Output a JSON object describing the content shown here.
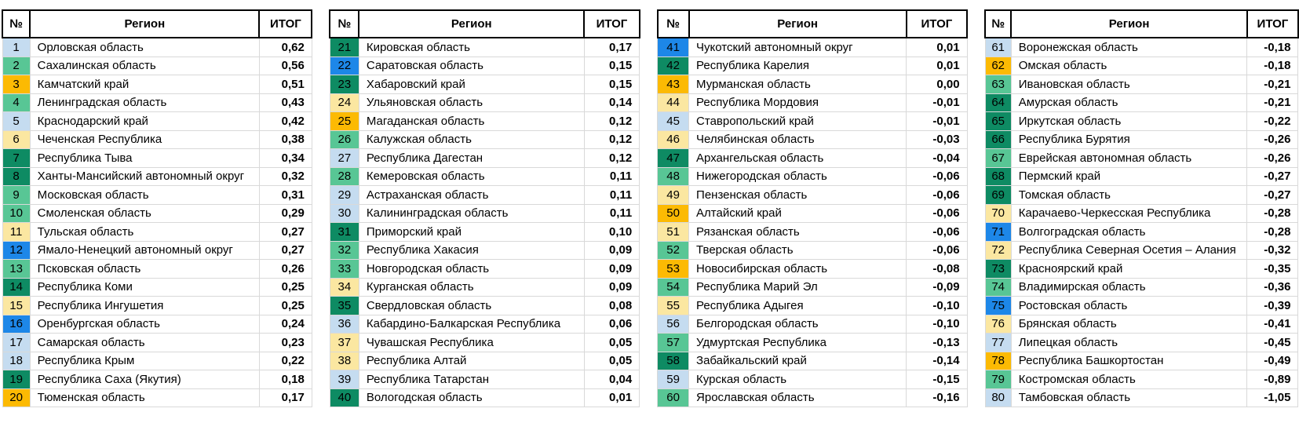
{
  "colors": {
    "lightblue": "#c5dcf0",
    "green": "#58c695",
    "teal": "#0e8b63",
    "gold": "#fcba03",
    "paleyellow": "#fbe7a1",
    "blue": "#1d87e8"
  },
  "chart_data": {
    "type": "table",
    "columns": {
      "num": "№",
      "region": "Регион",
      "total": "ИТОГ"
    },
    "tables": [
      {
        "rows": [
          {
            "n": "1",
            "region": "Орловская область",
            "value": "0,62",
            "color": "lightblue"
          },
          {
            "n": "2",
            "region": "Сахалинская область",
            "value": "0,56",
            "color": "green"
          },
          {
            "n": "3",
            "region": "Камчатский край",
            "value": "0,51",
            "color": "gold"
          },
          {
            "n": "4",
            "region": "Ленинградская область",
            "value": "0,43",
            "color": "green"
          },
          {
            "n": "5",
            "region": "Краснодарский край",
            "value": "0,42",
            "color": "lightblue"
          },
          {
            "n": "6",
            "region": "Чеченская Республика",
            "value": "0,38",
            "color": "paleyellow"
          },
          {
            "n": "7",
            "region": "Республика Тыва",
            "value": "0,34",
            "color": "teal"
          },
          {
            "n": "8",
            "region": "Ханты-Мансийский автономный округ",
            "value": "0,32",
            "color": "teal"
          },
          {
            "n": "9",
            "region": "Московская область",
            "value": "0,31",
            "color": "green"
          },
          {
            "n": "10",
            "region": "Смоленская область",
            "value": "0,29",
            "color": "green"
          },
          {
            "n": "11",
            "region": "Тульская область",
            "value": "0,27",
            "color": "paleyellow"
          },
          {
            "n": "12",
            "region": "Ямало-Ненецкий автономный округ",
            "value": "0,27",
            "color": "blue"
          },
          {
            "n": "13",
            "region": "Псковская область",
            "value": "0,26",
            "color": "green"
          },
          {
            "n": "14",
            "region": "Республика Коми",
            "value": "0,25",
            "color": "teal"
          },
          {
            "n": "15",
            "region": "Республика Ингушетия",
            "value": "0,25",
            "color": "paleyellow"
          },
          {
            "n": "16",
            "region": "Оренбургская область",
            "value": "0,24",
            "color": "blue"
          },
          {
            "n": "17",
            "region": "Самарская область",
            "value": "0,23",
            "color": "lightblue"
          },
          {
            "n": "18",
            "region": "Республика Крым",
            "value": "0,22",
            "color": "lightblue"
          },
          {
            "n": "19",
            "region": "Республика Саха (Якутия)",
            "value": "0,18",
            "color": "teal"
          },
          {
            "n": "20",
            "region": "Тюменская область",
            "value": "0,17",
            "color": "gold"
          }
        ]
      },
      {
        "rows": [
          {
            "n": "21",
            "region": "Кировская область",
            "value": "0,17",
            "color": "teal"
          },
          {
            "n": "22",
            "region": "Саратовская область",
            "value": "0,15",
            "color": "blue"
          },
          {
            "n": "23",
            "region": "Хабаровский край",
            "value": "0,15",
            "color": "teal"
          },
          {
            "n": "24",
            "region": "Ульяновская область",
            "value": "0,14",
            "color": "paleyellow"
          },
          {
            "n": "25",
            "region": "Магаданская область",
            "value": "0,12",
            "color": "gold"
          },
          {
            "n": "26",
            "region": "Калужская область",
            "value": "0,12",
            "color": "green"
          },
          {
            "n": "27",
            "region": "Республика Дагестан",
            "value": "0,12",
            "color": "lightblue"
          },
          {
            "n": "28",
            "region": "Кемеровская область",
            "value": "0,11",
            "color": "green"
          },
          {
            "n": "29",
            "region": "Астраханская область",
            "value": "0,11",
            "color": "lightblue"
          },
          {
            "n": "30",
            "region": "Калининградская область",
            "value": "0,11",
            "color": "lightblue"
          },
          {
            "n": "31",
            "region": "Приморский край",
            "value": "0,10",
            "color": "teal"
          },
          {
            "n": "32",
            "region": "Республика Хакасия",
            "value": "0,09",
            "color": "green"
          },
          {
            "n": "33",
            "region": "Новгородская область",
            "value": "0,09",
            "color": "green"
          },
          {
            "n": "34",
            "region": "Курганская область",
            "value": "0,09",
            "color": "paleyellow"
          },
          {
            "n": "35",
            "region": "Свердловская область",
            "value": "0,08",
            "color": "teal"
          },
          {
            "n": "36",
            "region": "Кабардино-Балкарская Республика",
            "value": "0,06",
            "color": "lightblue"
          },
          {
            "n": "37",
            "region": "Чувашская Республика",
            "value": "0,05",
            "color": "paleyellow"
          },
          {
            "n": "38",
            "region": "Республика Алтай",
            "value": "0,05",
            "color": "paleyellow"
          },
          {
            "n": "39",
            "region": "Республика Татарстан",
            "value": "0,04",
            "color": "lightblue"
          },
          {
            "n": "40",
            "region": "Вологодская область",
            "value": "0,01",
            "color": "teal"
          }
        ]
      },
      {
        "rows": [
          {
            "n": "41",
            "region": "Чукотский автономный округ",
            "value": "0,01",
            "color": "blue"
          },
          {
            "n": "42",
            "region": "Республика Карелия",
            "value": "0,01",
            "color": "teal"
          },
          {
            "n": "43",
            "region": "Мурманская область",
            "value": "0,00",
            "color": "gold"
          },
          {
            "n": "44",
            "region": "Республика Мордовия",
            "value": "-0,01",
            "color": "paleyellow"
          },
          {
            "n": "45",
            "region": "Ставропольский край",
            "value": "-0,01",
            "color": "lightblue"
          },
          {
            "n": "46",
            "region": "Челябинская область",
            "value": "-0,03",
            "color": "paleyellow"
          },
          {
            "n": "47",
            "region": "Архангельская область",
            "value": "-0,04",
            "color": "teal"
          },
          {
            "n": "48",
            "region": "Нижегородская область",
            "value": "-0,06",
            "color": "green"
          },
          {
            "n": "49",
            "region": "Пензенская область",
            "value": "-0,06",
            "color": "paleyellow"
          },
          {
            "n": "50",
            "region": "Алтайский край",
            "value": "-0,06",
            "color": "gold"
          },
          {
            "n": "51",
            "region": "Рязанская область",
            "value": "-0,06",
            "color": "paleyellow"
          },
          {
            "n": "52",
            "region": "Тверская область",
            "value": "-0,06",
            "color": "green"
          },
          {
            "n": "53",
            "region": "Новосибирская область",
            "value": "-0,08",
            "color": "gold"
          },
          {
            "n": "54",
            "region": "Республика Марий Эл",
            "value": "-0,09",
            "color": "green"
          },
          {
            "n": "55",
            "region": "Республика Адыгея",
            "value": "-0,10",
            "color": "paleyellow"
          },
          {
            "n": "56",
            "region": "Белгородская область",
            "value": "-0,10",
            "color": "lightblue"
          },
          {
            "n": "57",
            "region": "Удмуртская Республика",
            "value": "-0,13",
            "color": "green"
          },
          {
            "n": "58",
            "region": "Забайкальский край",
            "value": "-0,14",
            "color": "teal"
          },
          {
            "n": "59",
            "region": "Курская область",
            "value": "-0,15",
            "color": "lightblue"
          },
          {
            "n": "60",
            "region": "Ярославская область",
            "value": "-0,16",
            "color": "green"
          }
        ]
      },
      {
        "rows": [
          {
            "n": "61",
            "region": "Воронежская область",
            "value": "-0,18",
            "color": "lightblue"
          },
          {
            "n": "62",
            "region": "Омская область",
            "value": "-0,18",
            "color": "gold"
          },
          {
            "n": "63",
            "region": "Ивановская область",
            "value": "-0,21",
            "color": "green"
          },
          {
            "n": "64",
            "region": "Амурская область",
            "value": "-0,21",
            "color": "teal"
          },
          {
            "n": "65",
            "region": "Иркутская область",
            "value": "-0,22",
            "color": "teal"
          },
          {
            "n": "66",
            "region": "Республика Бурятия",
            "value": "-0,26",
            "color": "teal"
          },
          {
            "n": "67",
            "region": "Еврейская автономная область",
            "value": "-0,26",
            "color": "green"
          },
          {
            "n": "68",
            "region": "Пермский край",
            "value": "-0,27",
            "color": "teal"
          },
          {
            "n": "69",
            "region": "Томская область",
            "value": "-0,27",
            "color": "teal"
          },
          {
            "n": "70",
            "region": "Карачаево-Черкесская Республика",
            "value": "-0,28",
            "color": "paleyellow"
          },
          {
            "n": "71",
            "region": "Волгоградская область",
            "value": "-0,28",
            "color": "blue"
          },
          {
            "n": "72",
            "region": "Республика Северная Осетия – Алания",
            "value": "-0,32",
            "color": "paleyellow"
          },
          {
            "n": "73",
            "region": "Красноярский край",
            "value": "-0,35",
            "color": "teal"
          },
          {
            "n": "74",
            "region": "Владимирская область",
            "value": "-0,36",
            "color": "green"
          },
          {
            "n": "75",
            "region": "Ростовская область",
            "value": "-0,39",
            "color": "blue"
          },
          {
            "n": "76",
            "region": "Брянская область",
            "value": "-0,41",
            "color": "paleyellow"
          },
          {
            "n": "77",
            "region": "Липецкая область",
            "value": "-0,45",
            "color": "lightblue"
          },
          {
            "n": "78",
            "region": "Республика Башкортостан",
            "value": "-0,49",
            "color": "gold"
          },
          {
            "n": "79",
            "region": "Костромская область",
            "value": "-0,89",
            "color": "green"
          },
          {
            "n": "80",
            "region": "Тамбовская область",
            "value": "-1,05",
            "color": "lightblue"
          }
        ]
      }
    ]
  }
}
